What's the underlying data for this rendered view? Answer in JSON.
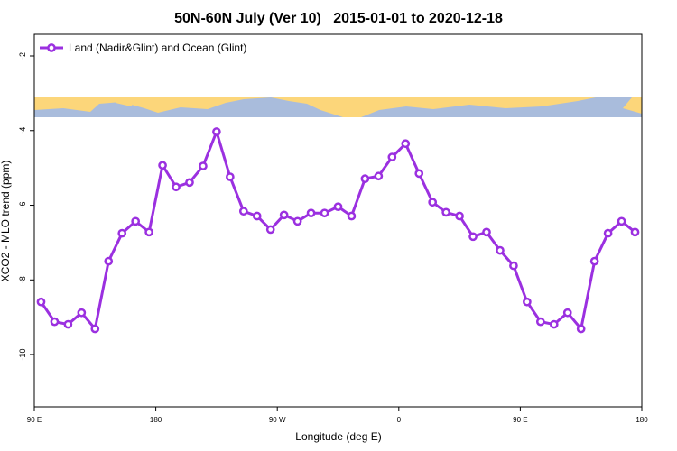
{
  "chart_data": {
    "type": "line",
    "title": "50N-60N July (Ver 10)   2015-01-01 to 2020-12-18",
    "xlabel": "Longitude (deg E)",
    "ylabel": "XCO2 - MLO trend (ppm)",
    "x": [
      95,
      105,
      115,
      125,
      135,
      145,
      155,
      165,
      175,
      185,
      195,
      205,
      215,
      225,
      235,
      245,
      255,
      265,
      275,
      285,
      295,
      305,
      315,
      325,
      335,
      345,
      355,
      365,
      375,
      385,
      395,
      405,
      415,
      425,
      435,
      445,
      455,
      465,
      475,
      485,
      495,
      505,
      515,
      525,
      535
    ],
    "series": [
      {
        "name": "Land (Nadir&Glint) and Ocean (Glint)",
        "color": "#9b30e0",
        "values": [
          -8.59,
          -9.12,
          -9.19,
          -8.88,
          -9.31,
          -7.5,
          -6.75,
          -6.43,
          -6.72,
          -4.93,
          -5.51,
          -5.39,
          -4.95,
          -4.03,
          -5.24,
          -6.16,
          -6.29,
          -6.65,
          -6.26,
          -6.43,
          -6.21,
          -6.21,
          -6.04,
          -6.29,
          -5.29,
          -5.22,
          -4.71,
          -4.35,
          -5.15,
          -5.92,
          -6.19,
          -6.29,
          -6.84,
          -6.72,
          -7.21,
          -7.62,
          -8.59,
          -9.12,
          -9.19,
          -8.88,
          -9.31,
          -7.5,
          -6.75,
          -6.43,
          -6.72
        ]
      }
    ],
    "xlim": [
      90,
      540
    ],
    "xticks": [
      {
        "value": 90,
        "label": "90 E"
      },
      180,
      {
        "value": 270,
        "label": "90 W"
      },
      {
        "value": 360,
        "label": "0"
      },
      {
        "value": 450,
        "label": "90 E"
      },
      {
        "value": 540,
        "label": "180"
      }
    ],
    "ylim": [
      -11.4,
      -1.42
    ],
    "yticks": [
      -2,
      -4,
      -6,
      -8,
      -10
    ],
    "legend": "top-left"
  }
}
